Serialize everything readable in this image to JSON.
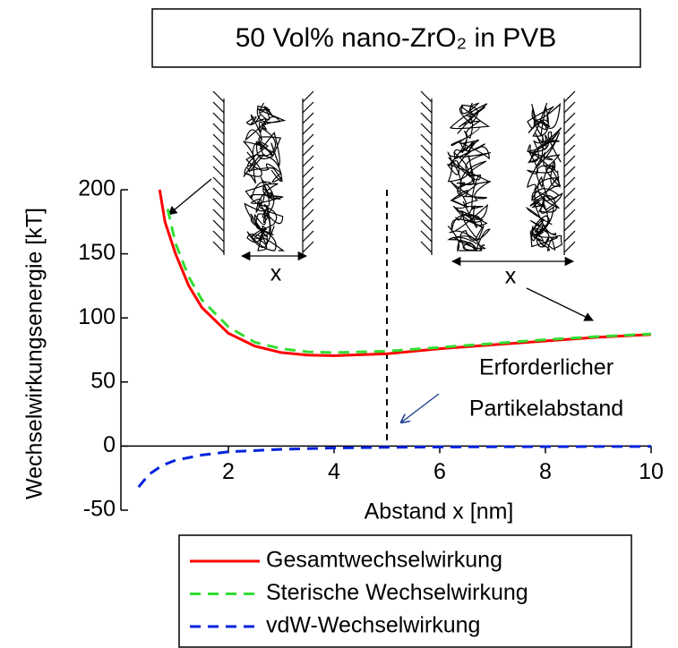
{
  "chart_data": {
    "type": "line",
    "title": "50 Vol% nano-ZrO₂ in PVB",
    "x_label": "Abstand x [nm]",
    "y_label": "Wechselwirkungsenergie [kT]",
    "xlim": [
      0,
      10
    ],
    "xticks": [
      2,
      4,
      6,
      8,
      10
    ],
    "ylim": [
      -50,
      200
    ],
    "yticks": [
      -50,
      0,
      50,
      100,
      150,
      200
    ],
    "vline": 5,
    "annotations": [
      "Erforderlicher",
      "Partikelabstand",
      "x",
      "x"
    ],
    "series": [
      {
        "name": "Gesamtwechselwirkung",
        "color": "#ff0000",
        "dash": false,
        "x": [
          0.7,
          0.8,
          1,
          1.25,
          1.5,
          2,
          2.5,
          3,
          3.5,
          4,
          5,
          6,
          7,
          8,
          9,
          10
        ],
        "values": [
          200,
          175,
          150,
          125,
          108,
          88,
          78,
          73,
          71,
          70.5,
          72,
          76,
          79,
          82,
          85,
          87
        ]
      },
      {
        "name": "Sterische Wechselwirkung",
        "color": "#33dd33",
        "dash": true,
        "x": [
          0.85,
          1,
          1.25,
          1.5,
          2,
          2.5,
          3,
          3.5,
          4,
          5,
          6,
          7,
          8,
          9,
          10
        ],
        "values": [
          185,
          158,
          132,
          114,
          93,
          81,
          76,
          73.5,
          73,
          74,
          77,
          80,
          83,
          85.5,
          87.5
        ]
      },
      {
        "name": "vdW-Wechselwirkung",
        "color": "#0022dd",
        "dash": true,
        "x": [
          0.3,
          0.5,
          0.75,
          1,
          1.5,
          2,
          3,
          4,
          5,
          6,
          8,
          10
        ],
        "values": [
          -32,
          -22,
          -15,
          -11,
          -7,
          -4.5,
          -2.5,
          -1.5,
          -1,
          -0.7,
          -0.4,
          -0.3
        ]
      }
    ]
  }
}
